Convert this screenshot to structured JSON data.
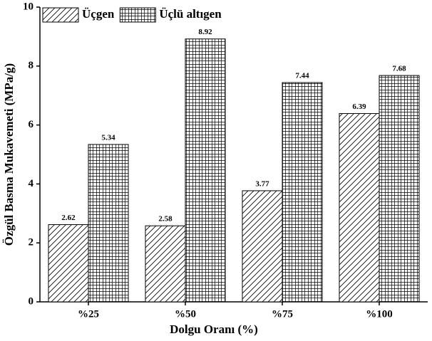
{
  "chart_data": {
    "type": "bar",
    "x_label": "Dolgu Oranı (%)",
    "y_label": "Özgül Basma Mukavemeti (MPa/g)",
    "categories": [
      "%25",
      "%50",
      "%75",
      "%100"
    ],
    "series": [
      {
        "name": "Üçgen",
        "color": "#000000",
        "pattern": "diagonal",
        "values": [
          2.62,
          2.58,
          3.77,
          6.39
        ]
      },
      {
        "name": "Üçlü altıgen",
        "color": "#000000",
        "pattern": "grid",
        "values": [
          5.34,
          8.92,
          7.44,
          7.68
        ]
      }
    ],
    "ylim": [
      0,
      10
    ],
    "yticks": [
      0,
      2,
      4,
      6,
      8,
      10
    ],
    "legend": "top-left"
  }
}
